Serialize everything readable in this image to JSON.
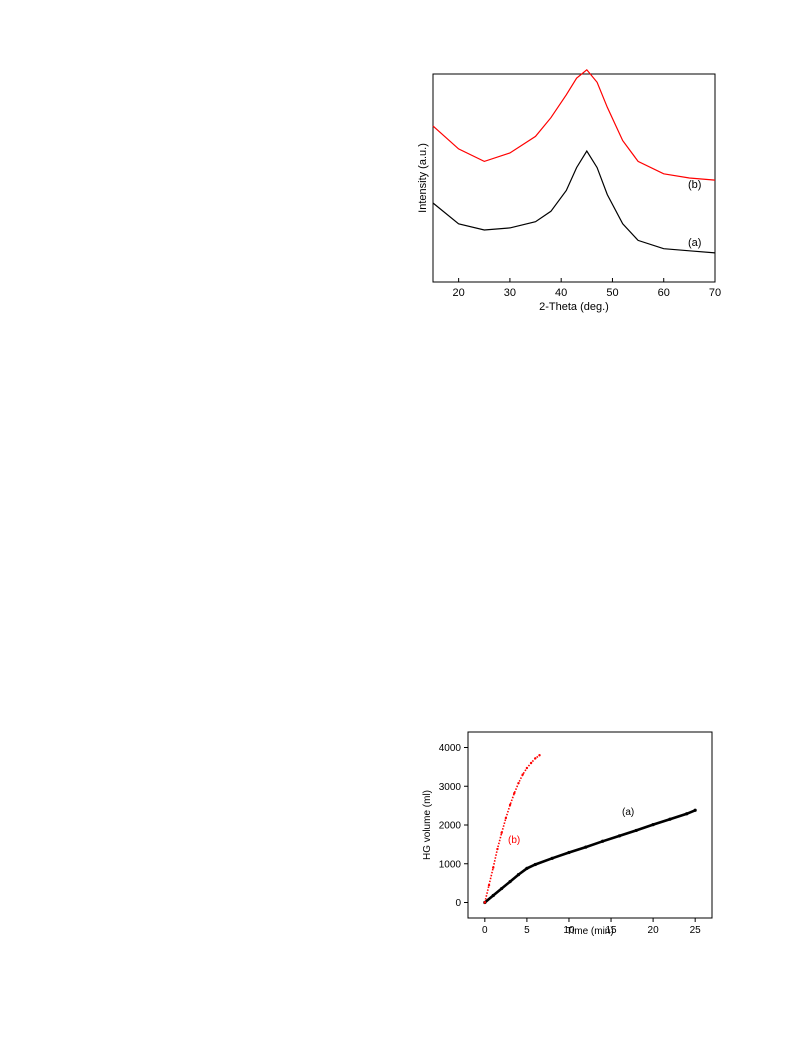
{
  "chart_data": [
    {
      "type": "line",
      "xlabel": "2-Theta (deg.)",
      "ylabel": "Intensity (a.u.)",
      "xlim": [
        15,
        70
      ],
      "x_ticks": [
        20,
        30,
        40,
        50,
        60,
        70
      ],
      "y_ticks_visible": false,
      "grid": false,
      "legend": "none",
      "series": [
        {
          "name": "(a)",
          "color": "#000000",
          "x": [
            15,
            20,
            25,
            30,
            35,
            38,
            41,
            43,
            45,
            47,
            49,
            52,
            55,
            60,
            65,
            70
          ],
          "y": [
            0.38,
            0.28,
            0.25,
            0.26,
            0.29,
            0.34,
            0.44,
            0.55,
            0.63,
            0.55,
            0.42,
            0.28,
            0.2,
            0.16,
            0.15,
            0.14
          ]
        },
        {
          "name": "(b)",
          "color": "#ff0000",
          "x": [
            15,
            20,
            25,
            30,
            35,
            38,
            41,
            43,
            45,
            47,
            49,
            52,
            55,
            60,
            65,
            70
          ],
          "y": [
            0.75,
            0.64,
            0.58,
            0.62,
            0.7,
            0.79,
            0.9,
            0.98,
            1.02,
            0.96,
            0.84,
            0.68,
            0.58,
            0.52,
            0.5,
            0.49
          ]
        }
      ]
    },
    {
      "type": "scatter",
      "xlabel": "Time (min)",
      "ylabel": "HG volume (ml)",
      "xlim": [
        -2,
        27
      ],
      "ylim": [
        -400,
        4400
      ],
      "x_ticks": [
        0,
        5,
        10,
        15,
        20,
        25
      ],
      "y_ticks": [
        0,
        1000,
        2000,
        3000,
        4000
      ],
      "grid": false,
      "legend": "none",
      "series": [
        {
          "name": "(a)",
          "color": "#000000",
          "x": [
            0,
            1,
            2,
            3,
            4,
            5,
            6,
            8,
            10,
            12,
            14,
            16,
            18,
            20,
            22,
            24,
            25
          ],
          "y": [
            0,
            180,
            360,
            540,
            720,
            880,
            980,
            1140,
            1290,
            1430,
            1580,
            1720,
            1860,
            2010,
            2150,
            2290,
            2380
          ]
        },
        {
          "name": "(b)",
          "color": "#ff0000",
          "x": [
            0,
            0.5,
            1,
            1.5,
            2,
            2.5,
            3,
            3.5,
            4,
            4.5,
            5,
            5.5,
            6,
            6.5
          ],
          "y": [
            0,
            450,
            900,
            1380,
            1800,
            2180,
            2520,
            2820,
            3080,
            3300,
            3470,
            3600,
            3720,
            3800
          ]
        }
      ]
    }
  ]
}
